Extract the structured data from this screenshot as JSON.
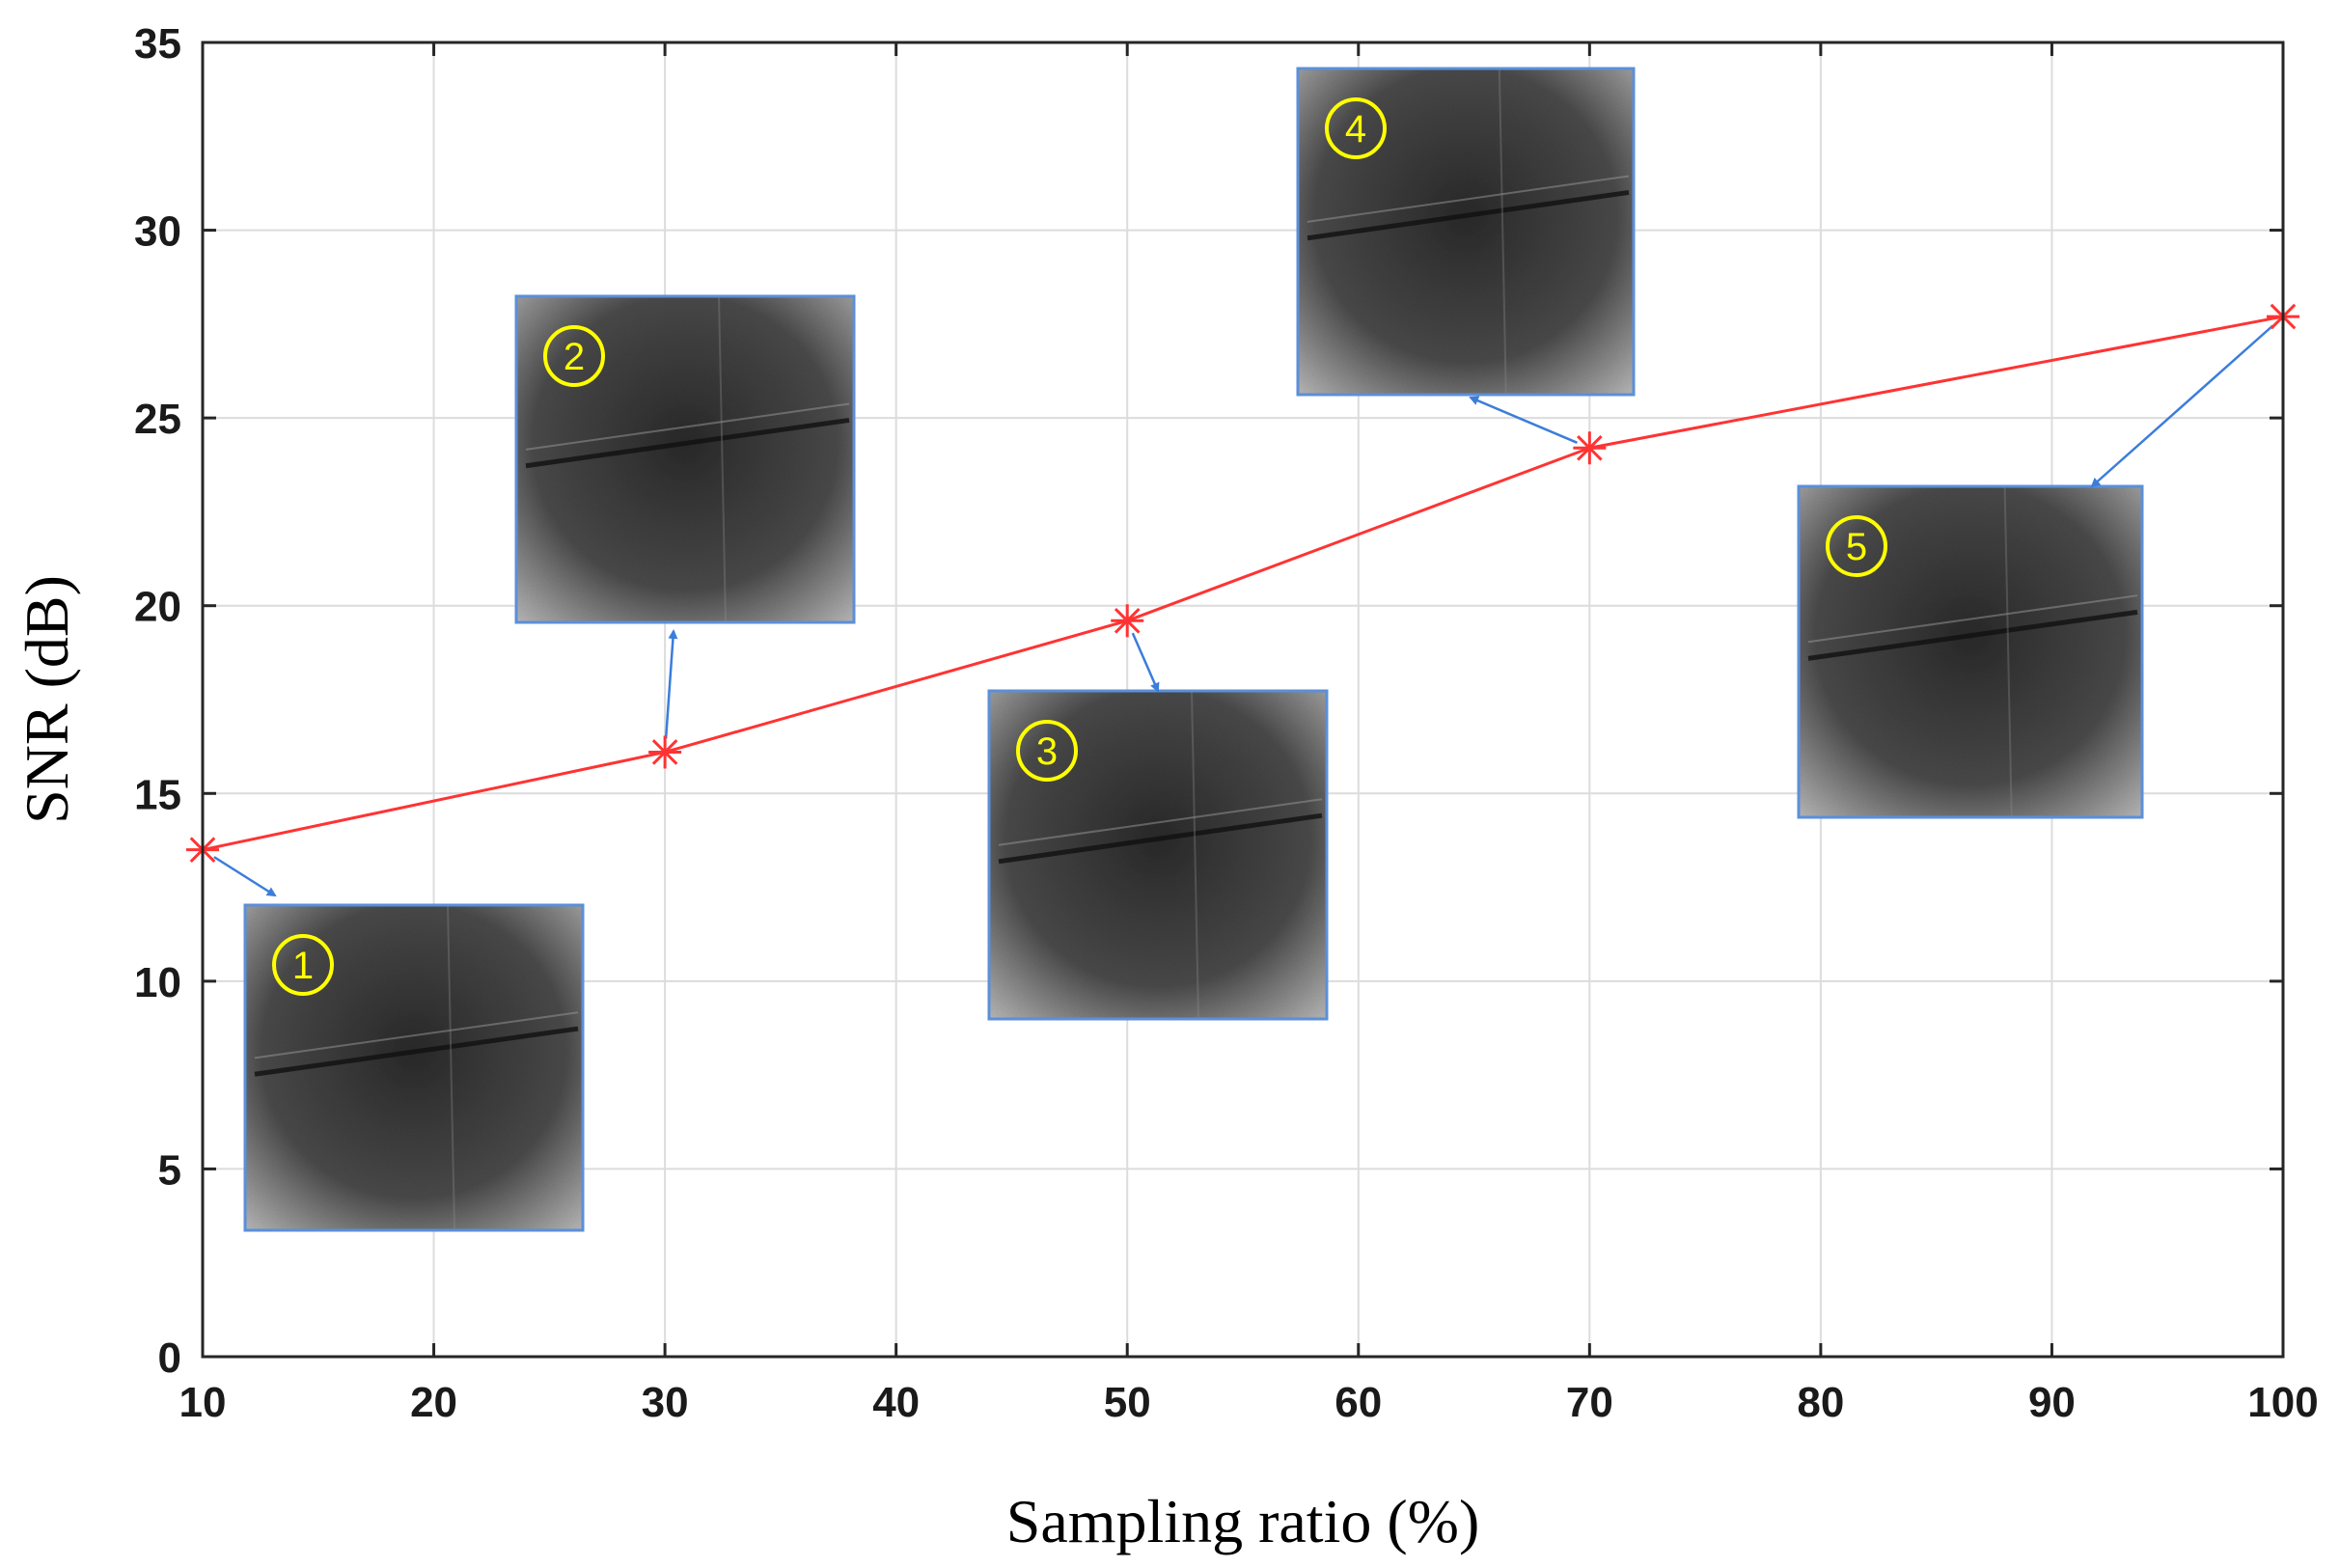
{
  "chart_data": {
    "type": "line",
    "title": "",
    "xlabel": "Sampling ratio (%)",
    "ylabel": "SNR (dB)",
    "xlim": [
      10,
      100
    ],
    "ylim": [
      0,
      35
    ],
    "xticks": [
      10,
      20,
      30,
      40,
      50,
      60,
      70,
      80,
      90,
      100
    ],
    "yticks": [
      0,
      5,
      10,
      15,
      20,
      25,
      30,
      35
    ],
    "grid": true,
    "series": [
      {
        "name": "SNR",
        "color": "#ff3333",
        "marker": "asterisk",
        "x": [
          10,
          30,
          50,
          70,
          100
        ],
        "y": [
          13.5,
          16.1,
          19.6,
          24.2,
          27.7
        ]
      }
    ],
    "insets": [
      {
        "label": "1",
        "point_index": 0
      },
      {
        "label": "2",
        "point_index": 1
      },
      {
        "label": "3",
        "point_index": 2
      },
      {
        "label": "4",
        "point_index": 3
      },
      {
        "label": "5",
        "point_index": 4
      }
    ],
    "colors": {
      "grid": "#dcdcdc",
      "axis": "#262626",
      "arrow": "#3b7ddb",
      "inset_border": "#5b8fd9",
      "badge": "#ffff00"
    }
  }
}
